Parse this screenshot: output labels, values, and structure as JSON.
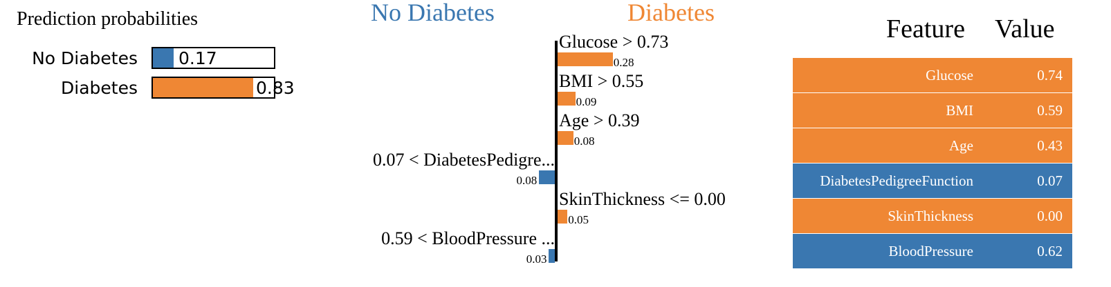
{
  "colors": {
    "no_diabetes": "#3a77b0",
    "diabetes": "#ef8734"
  },
  "prediction_probabilities": {
    "title": "Prediction probabilities",
    "classes": [
      {
        "label": "No Diabetes",
        "value": 0.17,
        "value_text": "0.17",
        "color": "#3a77b0"
      },
      {
        "label": "Diabetes",
        "value": 0.83,
        "value_text": "0.83",
        "color": "#ef8734"
      }
    ]
  },
  "explanation": {
    "negative_class": "No Diabetes",
    "positive_class": "Diabetes"
  },
  "chart_data": {
    "type": "bar",
    "orientation": "horizontal",
    "categories": [
      "Glucose > 0.73",
      "BMI > 0.55",
      "Age > 0.39",
      "0.07 < DiabetesPedigre...",
      "SkinThickness <= 0.00",
      "0.59 < BloodPressure ..."
    ],
    "values": [
      0.28,
      0.09,
      0.08,
      -0.08,
      0.05,
      -0.03
    ],
    "value_labels": [
      "0.28",
      "0.09",
      "0.08",
      "0.08",
      "0.05",
      "0.03"
    ],
    "legend": [
      "No Diabetes",
      "Diabetes"
    ]
  },
  "feature_table": {
    "headers": [
      "Feature",
      "Value"
    ],
    "rows": [
      {
        "feature": "Glucose",
        "value": "0.74",
        "color": "#ef8734"
      },
      {
        "feature": "BMI",
        "value": "0.59",
        "color": "#ef8734"
      },
      {
        "feature": "Age",
        "value": "0.43",
        "color": "#ef8734"
      },
      {
        "feature": "DiabetesPedigreeFunction",
        "value": "0.07",
        "color": "#3a77b0"
      },
      {
        "feature": "SkinThickness",
        "value": "0.00",
        "color": "#ef8734"
      },
      {
        "feature": "BloodPressure",
        "value": "0.62",
        "color": "#3a77b0"
      }
    ]
  }
}
